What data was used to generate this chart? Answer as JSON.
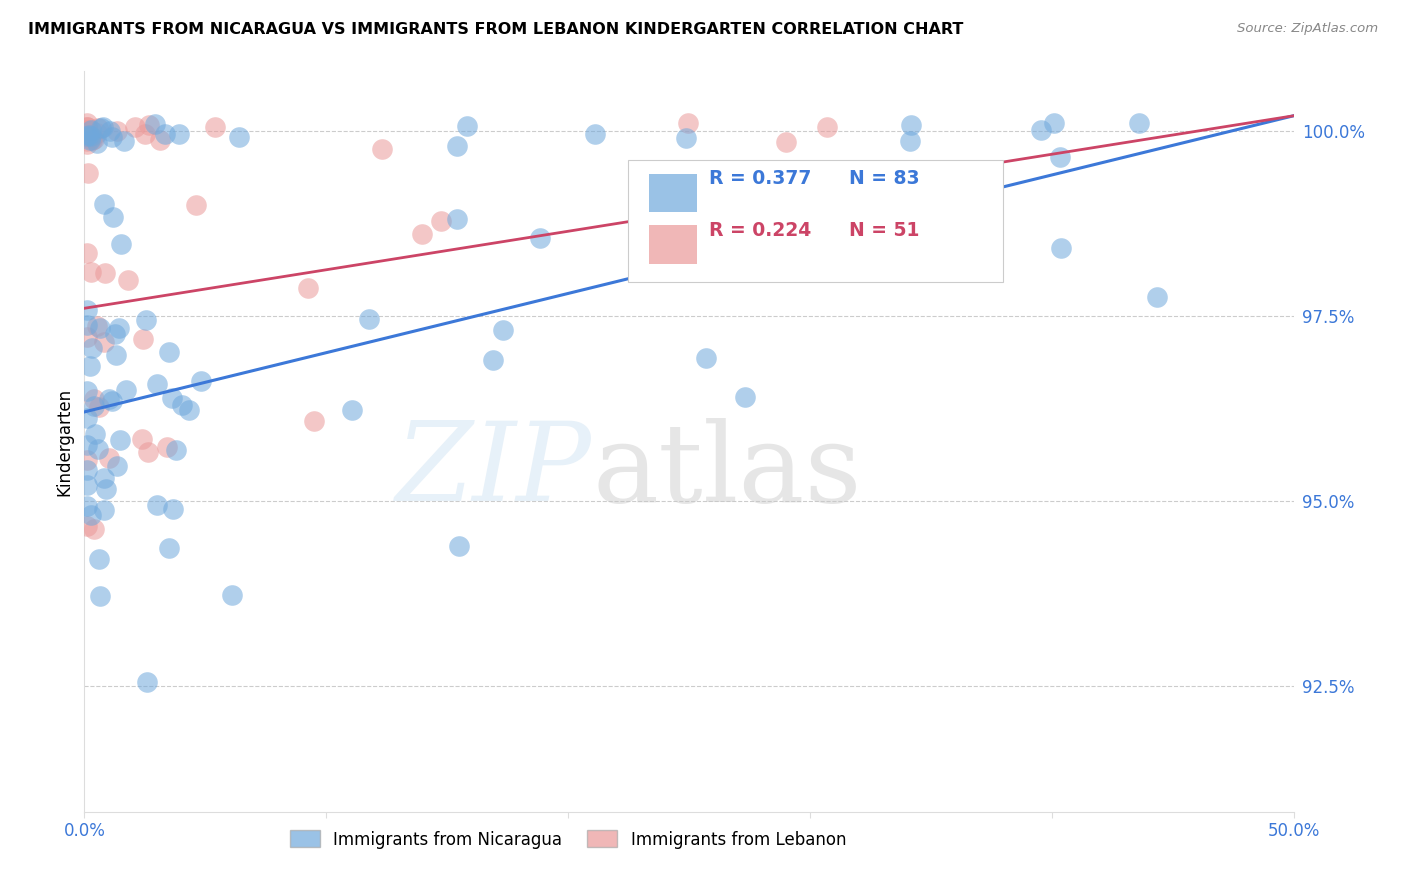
{
  "title": "IMMIGRANTS FROM NICARAGUA VS IMMIGRANTS FROM LEBANON KINDERGARTEN CORRELATION CHART",
  "source": "Source: ZipAtlas.com",
  "ylabel": "Kindergarten",
  "ytick_labels": [
    "92.5%",
    "95.0%",
    "97.5%",
    "100.0%"
  ],
  "ytick_values": [
    0.925,
    0.95,
    0.975,
    1.0
  ],
  "xmin": 0.0,
  "xmax": 0.5,
  "ymin": 0.908,
  "ymax": 1.008,
  "legend_blue_r": "R = 0.377",
  "legend_blue_n": "N = 83",
  "legend_pink_r": "R = 0.224",
  "legend_pink_n": "N = 51",
  "nicaragua_color": "#6fa8dc",
  "lebanon_color": "#ea9999",
  "nicaragua_line_color": "#3c78d8",
  "lebanon_line_color": "#cc4466",
  "nic_line_x0": 0.0,
  "nic_line_y0": 0.962,
  "nic_line_x1": 0.5,
  "nic_line_y1": 1.002,
  "leb_line_x0": 0.0,
  "leb_line_y0": 0.976,
  "leb_line_x1": 0.5,
  "leb_line_y1": 1.002,
  "legend_box_label1": "Immigrants from Nicaragua",
  "legend_box_label2": "Immigrants from Lebanon"
}
